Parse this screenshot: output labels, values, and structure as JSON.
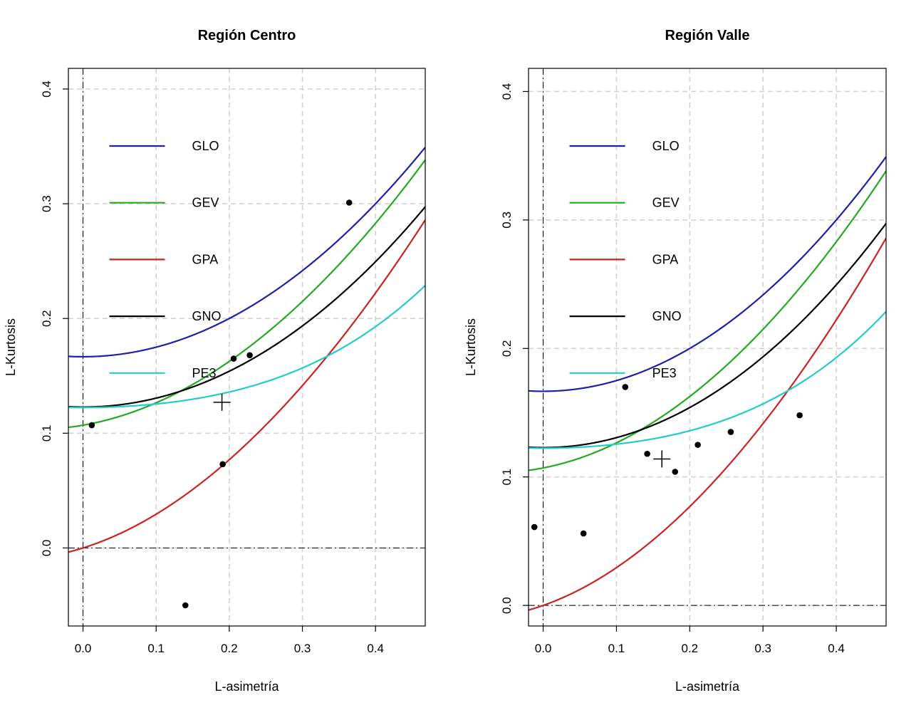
{
  "chart_data": [
    {
      "type": "scatter",
      "title": "Región Centro",
      "xlabel": "L-asimetría",
      "ylabel": "L-Kurtosis",
      "xlim": [
        -0.02,
        0.468
      ],
      "ylim": [
        -0.068,
        0.418
      ],
      "xticks": [
        "0.0",
        "0.1",
        "0.2",
        "0.3",
        "0.4"
      ],
      "xtick_values": [
        0.0,
        0.1,
        0.2,
        0.3,
        0.4
      ],
      "yticks": [
        "0.0",
        "0.1",
        "0.2",
        "0.3",
        "0.4"
      ],
      "ytick_values": [
        0.0,
        0.1,
        0.2,
        0.3,
        0.4
      ],
      "grid": true,
      "legend": [
        {
          "name": "GLO",
          "color": "#1f1fa8"
        },
        {
          "name": "GEV",
          "color": "#22aa22"
        },
        {
          "name": "GPA",
          "color": "#cc2222"
        },
        {
          "name": "GNO",
          "color": "#000000"
        },
        {
          "name": "PE3",
          "color": "#22cccc"
        }
      ],
      "points": [
        {
          "x": 0.012,
          "y": 0.107
        },
        {
          "x": 0.14,
          "y": -0.05
        },
        {
          "x": 0.191,
          "y": 0.073
        },
        {
          "x": 0.206,
          "y": 0.165
        },
        {
          "x": 0.228,
          "y": 0.168
        },
        {
          "x": 0.364,
          "y": 0.301
        }
      ],
      "mean_point": {
        "x": 0.19,
        "y": 0.127
      }
    },
    {
      "type": "scatter",
      "title": "Región Valle",
      "xlabel": "L-asimetría",
      "ylabel": "L-Kurtosis",
      "xlim": [
        -0.02,
        0.468
      ],
      "ylim": [
        -0.016,
        0.418
      ],
      "xticks": [
        "0.0",
        "0.1",
        "0.2",
        "0.3",
        "0.4"
      ],
      "xtick_values": [
        0.0,
        0.1,
        0.2,
        0.3,
        0.4
      ],
      "yticks": [
        "0.0",
        "0.1",
        "0.2",
        "0.3",
        "0.4"
      ],
      "ytick_values": [
        0.0,
        0.1,
        0.2,
        0.3,
        0.4
      ],
      "grid": true,
      "legend": [
        {
          "name": "GLO",
          "color": "#1f1fa8"
        },
        {
          "name": "GEV",
          "color": "#22aa22"
        },
        {
          "name": "GPA",
          "color": "#cc2222"
        },
        {
          "name": "GNO",
          "color": "#000000"
        },
        {
          "name": "PE3",
          "color": "#22cccc"
        }
      ],
      "points": [
        {
          "x": -0.012,
          "y": 0.061
        },
        {
          "x": 0.055,
          "y": 0.056
        },
        {
          "x": 0.112,
          "y": 0.17
        },
        {
          "x": 0.142,
          "y": 0.118
        },
        {
          "x": 0.18,
          "y": 0.104
        },
        {
          "x": 0.211,
          "y": 0.125
        },
        {
          "x": 0.256,
          "y": 0.135
        },
        {
          "x": 0.35,
          "y": 0.148
        }
      ],
      "mean_point": {
        "x": 0.162,
        "y": 0.114
      }
    }
  ]
}
